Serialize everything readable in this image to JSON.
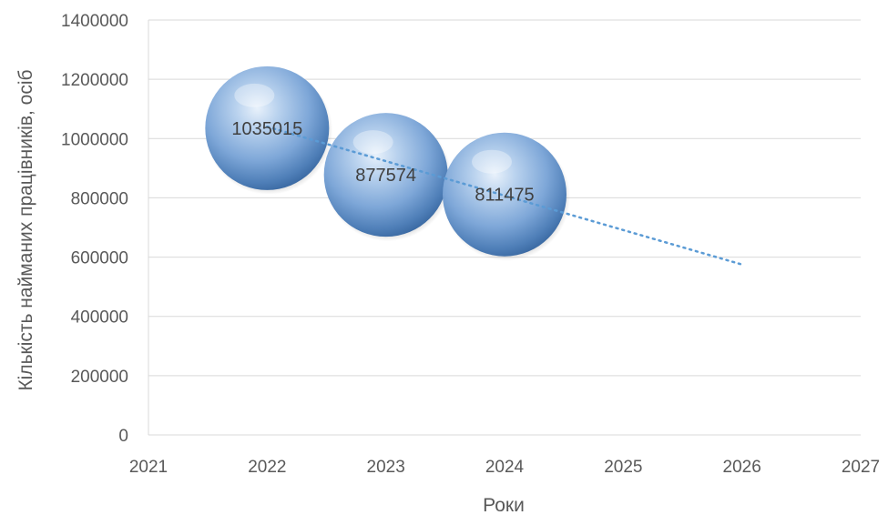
{
  "chart_data": {
    "type": "bubble",
    "title": "",
    "xlabel": "Роки",
    "ylabel": "Кількість найманих працівників, осіб",
    "xlim": [
      2021,
      2027
    ],
    "ylim": [
      0,
      1400000
    ],
    "x_ticks": [
      2021,
      2022,
      2023,
      2024,
      2025,
      2026,
      2027
    ],
    "y_ticks": [
      0,
      200000,
      400000,
      600000,
      800000,
      1000000,
      1200000,
      1400000
    ],
    "grid": true,
    "legend": "none",
    "series": [
      {
        "x": [
          2022,
          2023,
          2024
        ],
        "y": [
          1035015,
          877574,
          811475
        ],
        "labels": [
          "1035015",
          "877574",
          "811475"
        ],
        "color": "#8fb4de"
      }
    ],
    "trendline": {
      "type": "linear",
      "style": "dotted",
      "color": "#5b9bd5",
      "x": [
        2022,
        2026
      ],
      "y": [
        1040000,
        575000
      ]
    }
  }
}
